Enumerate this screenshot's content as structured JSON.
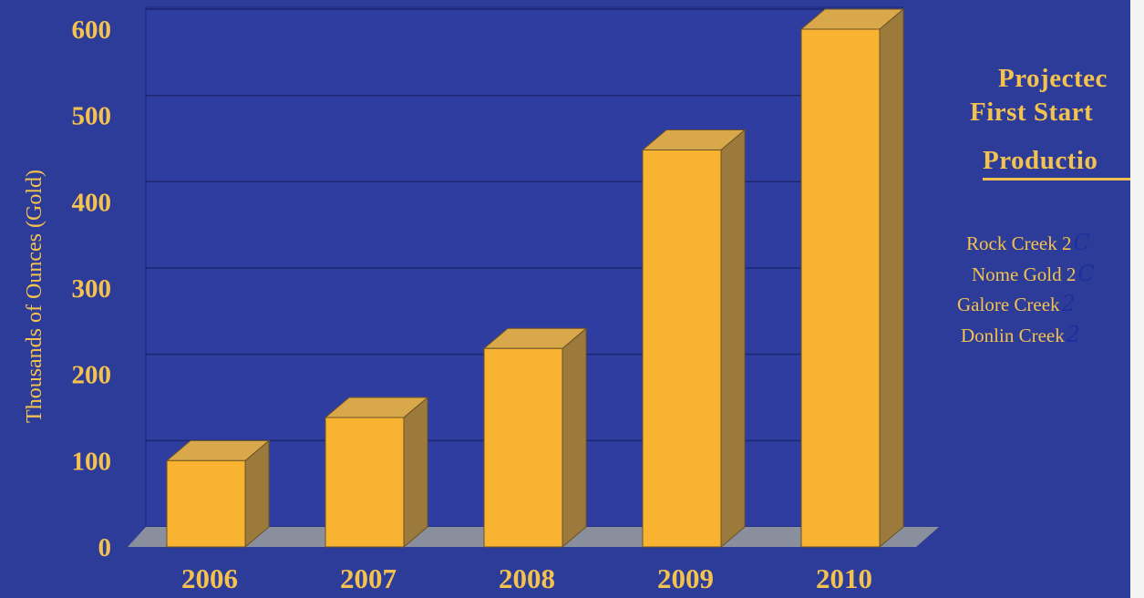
{
  "chart_data": {
    "type": "bar",
    "title": "",
    "xlabel": "",
    "ylabel": "Thousands of Ounces (Gold)",
    "categories": [
      "2006",
      "2007",
      "2008",
      "2009",
      "2010"
    ],
    "values": [
      100,
      150,
      230,
      460,
      600
    ],
    "ylim": [
      0,
      600
    ],
    "yticks": [
      "0",
      "100",
      "200",
      "300",
      "400",
      "500",
      "600"
    ],
    "grid": true,
    "style": "3d"
  },
  "side_panel": {
    "title_lines": [
      "Projectec",
      "First Start",
      "Productio"
    ],
    "items": [
      {
        "label": "Rock Creek 2",
        "note": "C"
      },
      {
        "label": "Nome Gold 2",
        "note": "C"
      },
      {
        "label": "Galore Creek",
        "note": "2"
      },
      {
        "label": "Donlin Creek",
        "note": "2"
      }
    ]
  },
  "colors": {
    "background": "#2e3c99",
    "bar_front": "#f8b431",
    "bar_top": "#d9a84a",
    "bar_side": "#9c7a3c",
    "text": "#f3c24f",
    "grid": "#1c266e",
    "floor": "#8a8f9e"
  }
}
